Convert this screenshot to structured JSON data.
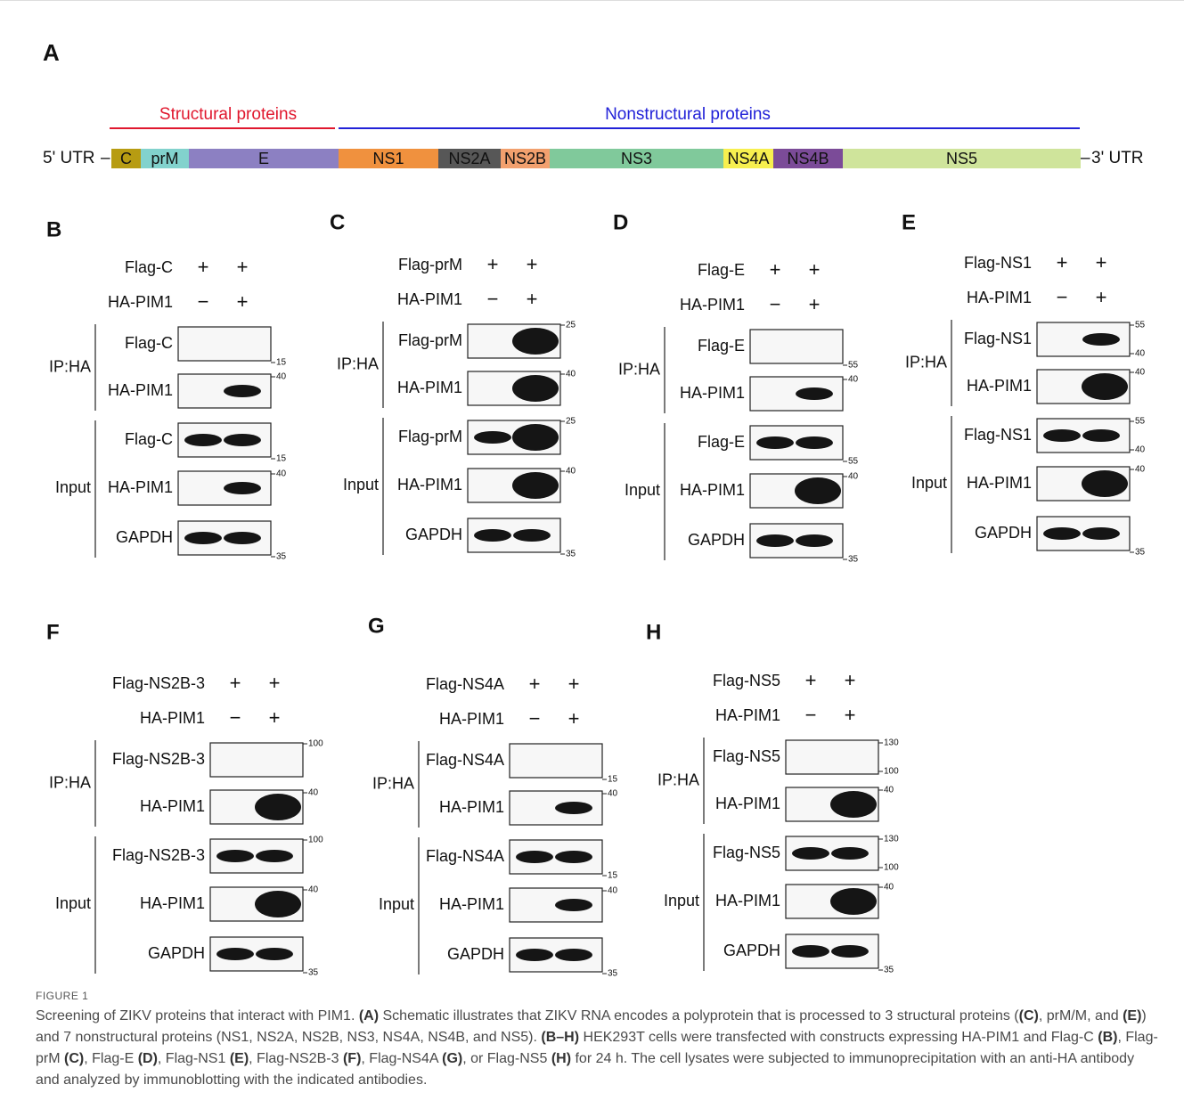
{
  "panel_a": {
    "label": "A",
    "structural": "Structural proteins",
    "nonstructural": "Nonstructural proteins",
    "utr5": "5' UTR",
    "utr3": "3' UTR",
    "segments": [
      {
        "name": "C",
        "color": "#b79c12"
      },
      {
        "name": "prM",
        "color": "#82d2cd"
      },
      {
        "name": "E",
        "color": "#8c80c2"
      },
      {
        "name": "NS1",
        "color": "#f0913e"
      },
      {
        "name": "NS2A",
        "color": "#575757"
      },
      {
        "name": "NS2B",
        "color": "#f2a06e"
      },
      {
        "name": "NS3",
        "color": "#80c99b"
      },
      {
        "name": "NS4A",
        "color": "#f7ef4f"
      },
      {
        "name": "NS4B",
        "color": "#7b4b98"
      },
      {
        "name": "NS5",
        "color": "#cfe49b"
      }
    ]
  },
  "blots": [
    {
      "label": "B",
      "bait": "Flag-C",
      "bait_signs": [
        "+",
        "+"
      ],
      "prey": "HA-PIM1",
      "prey_signs": [
        "−",
        "+"
      ],
      "ip": "IP:HA",
      "input": "Input",
      "rows": [
        {
          "name": "Flag-C",
          "markers": [
            15
          ]
        },
        {
          "name": "HA-PIM1",
          "markers": [
            40
          ]
        },
        {
          "name": "Flag-C",
          "markers": [
            15
          ]
        },
        {
          "name": "HA-PIM1",
          "markers": [
            40
          ]
        },
        {
          "name": "GAPDH",
          "markers": [
            35
          ]
        }
      ]
    },
    {
      "label": "C",
      "bait": "Flag-prM",
      "bait_signs": [
        "+",
        "+"
      ],
      "prey": "HA-PIM1",
      "prey_signs": [
        "−",
        "+"
      ],
      "ip": "IP:HA",
      "input": "Input",
      "rows": [
        {
          "name": "Flag-prM",
          "markers": [
            25
          ]
        },
        {
          "name": "HA-PIM1",
          "markers": [
            40
          ]
        },
        {
          "name": "Flag-prM",
          "markers": [
            25
          ]
        },
        {
          "name": "HA-PIM1",
          "markers": [
            40
          ]
        },
        {
          "name": "GAPDH",
          "markers": [
            35
          ]
        }
      ]
    },
    {
      "label": "D",
      "bait": "Flag-E",
      "bait_signs": [
        "+",
        "+"
      ],
      "prey": "HA-PIM1",
      "prey_signs": [
        "−",
        "+"
      ],
      "ip": "IP:HA",
      "input": "Input",
      "rows": [
        {
          "name": "Flag-E",
          "markers": [
            55
          ]
        },
        {
          "name": "HA-PIM1",
          "markers": [
            40
          ]
        },
        {
          "name": "Flag-E",
          "markers": [
            55
          ]
        },
        {
          "name": "HA-PIM1",
          "markers": [
            40
          ]
        },
        {
          "name": "GAPDH",
          "markers": [
            35
          ]
        }
      ]
    },
    {
      "label": "E",
      "bait": "Flag-NS1",
      "bait_signs": [
        "+",
        "+"
      ],
      "prey": "HA-PIM1",
      "prey_signs": [
        "−",
        "+"
      ],
      "ip": "IP:HA",
      "input": "Input",
      "rows": [
        {
          "name": "Flag-NS1",
          "markers": [
            55,
            40
          ]
        },
        {
          "name": "HA-PIM1",
          "markers": [
            40
          ]
        },
        {
          "name": "Flag-NS1",
          "markers": [
            55,
            40
          ]
        },
        {
          "name": "HA-PIM1",
          "markers": [
            40
          ]
        },
        {
          "name": "GAPDH",
          "markers": [
            35
          ]
        }
      ]
    },
    {
      "label": "F",
      "bait": "Flag-NS2B-3",
      "bait_signs": [
        "+",
        "+"
      ],
      "prey": "HA-PIM1",
      "prey_signs": [
        "−",
        "+"
      ],
      "ip": "IP:HA",
      "input": "Input",
      "rows": [
        {
          "name": "Flag-NS2B-3",
          "markers": [
            100
          ]
        },
        {
          "name": "HA-PIM1",
          "markers": [
            40
          ]
        },
        {
          "name": "Flag-NS2B-3",
          "markers": [
            100
          ]
        },
        {
          "name": "HA-PIM1",
          "markers": [
            40
          ]
        },
        {
          "name": "GAPDH",
          "markers": [
            35
          ]
        }
      ]
    },
    {
      "label": "G",
      "bait": "Flag-NS4A",
      "bait_signs": [
        "+",
        "+"
      ],
      "prey": "HA-PIM1",
      "prey_signs": [
        "−",
        "+"
      ],
      "ip": "IP:HA",
      "input": "Input",
      "rows": [
        {
          "name": "Flag-NS4A",
          "markers": [
            15
          ]
        },
        {
          "name": "HA-PIM1",
          "markers": [
            40
          ]
        },
        {
          "name": "Flag-NS4A",
          "markers": [
            15
          ]
        },
        {
          "name": "HA-PIM1",
          "markers": [
            40
          ]
        },
        {
          "name": "GAPDH",
          "markers": [
            35
          ]
        }
      ]
    },
    {
      "label": "H",
      "bait": "Flag-NS5",
      "bait_signs": [
        "+",
        "+"
      ],
      "prey": "HA-PIM1",
      "prey_signs": [
        "−",
        "+"
      ],
      "ip": "IP:HA",
      "input": "Input",
      "rows": [
        {
          "name": "Flag-NS5",
          "markers": [
            130,
            100
          ]
        },
        {
          "name": "HA-PIM1",
          "markers": [
            40
          ]
        },
        {
          "name": "Flag-NS5",
          "markers": [
            130,
            100
          ]
        },
        {
          "name": "HA-PIM1",
          "markers": [
            40
          ]
        },
        {
          "name": "GAPDH",
          "markers": [
            35
          ]
        }
      ]
    }
  ],
  "caption": {
    "label": "FIGURE 1",
    "body": [
      {
        "text": "Screening of ZIKV proteins that interact with PIM1. ",
        "bold": false
      },
      {
        "text": "(A)",
        "bold": true
      },
      {
        "text": " Schematic illustrates that ZIKV RNA encodes a polyprotein that is processed to 3 structural proteins (",
        "bold": false
      },
      {
        "text": "(C)",
        "bold": true
      },
      {
        "text": ", prM/M, and ",
        "bold": false
      },
      {
        "text": "(E)",
        "bold": true
      },
      {
        "text": ") and 7 nonstructural proteins (NS1, NS2A, NS2B, NS3, NS4A, NS4B, and NS5). ",
        "bold": false
      },
      {
        "text": "(B–H)",
        "bold": true
      },
      {
        "text": " HEK293T cells were transfected with constructs expressing HA-PIM1 and Flag-C ",
        "bold": false
      },
      {
        "text": "(B)",
        "bold": true
      },
      {
        "text": ", Flag-prM ",
        "bold": false
      },
      {
        "text": "(C)",
        "bold": true
      },
      {
        "text": ", Flag-E ",
        "bold": false
      },
      {
        "text": "(D)",
        "bold": true
      },
      {
        "text": ", Flag-NS1 ",
        "bold": false
      },
      {
        "text": "(E)",
        "bold": true
      },
      {
        "text": ", Flag-NS2B-3 ",
        "bold": false
      },
      {
        "text": "(F)",
        "bold": true
      },
      {
        "text": ", Flag-NS4A ",
        "bold": false
      },
      {
        "text": "(G)",
        "bold": true
      },
      {
        "text": ", or Flag-NS5 ",
        "bold": false
      },
      {
        "text": "(H)",
        "bold": true
      },
      {
        "text": " for 24 h. The cell lysates were subjected to immunoprecipitation with an anti-HA antibody and analyzed by immunoblotting with the indicated antibodies.",
        "bold": false
      }
    ]
  }
}
